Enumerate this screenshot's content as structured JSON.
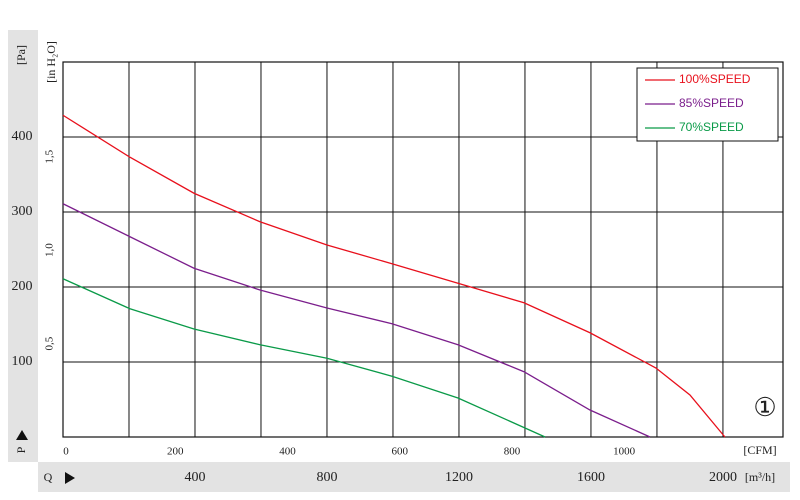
{
  "chart_data": {
    "type": "line",
    "x_label": "[m³/h]",
    "x_prefix": "Q",
    "y_label": "[Pa]",
    "y_prefix": "P",
    "x2_label": "[CFM]",
    "y2_label": "[in H₂O]",
    "annotation": "①",
    "xlim": [
      0,
      2182
    ],
    "xticks": [
      400,
      800,
      1200,
      1600,
      2000
    ],
    "xgrid": [
      200,
      600,
      1000,
      1400,
      1800
    ],
    "ylim": [
      0,
      500
    ],
    "yticks": [
      100,
      200,
      300,
      400
    ],
    "x2lim": [
      0,
      1283
    ],
    "x2ticks": [
      0,
      200,
      400,
      600,
      800,
      1000
    ],
    "y2lim": [
      0,
      2.007
    ],
    "y2ticks": [
      {
        "value": 0.5,
        "label": "0,5"
      },
      {
        "value": 1.0,
        "label": "1,0"
      },
      {
        "value": 1.5,
        "label": "1,5"
      }
    ],
    "grid": true,
    "legend": "upper right",
    "series": [
      {
        "name": "100%SPEED",
        "color": "#e8101c",
        "x": [
          0,
          203,
          397,
          597,
          800,
          997,
          1197,
          1397,
          1597,
          1797,
          1900,
          2006
        ],
        "values": [
          429,
          373,
          325,
          287,
          256,
          231,
          205,
          179,
          139,
          92,
          56,
          0
        ]
      },
      {
        "name": "85%SPEED",
        "color": "#7b1e8c",
        "x": [
          0,
          203,
          397,
          597,
          800,
          997,
          1197,
          1397,
          1597,
          1779
        ],
        "values": [
          311,
          267,
          225,
          196,
          172,
          151,
          123,
          87,
          36,
          0
        ]
      },
      {
        "name": "70%SPEED",
        "color": "#0a9a48",
        "x": [
          0,
          203,
          397,
          597,
          800,
          997,
          1197,
          1461
        ],
        "values": [
          211,
          171,
          144,
          123,
          105,
          81,
          52,
          0
        ]
      }
    ]
  }
}
